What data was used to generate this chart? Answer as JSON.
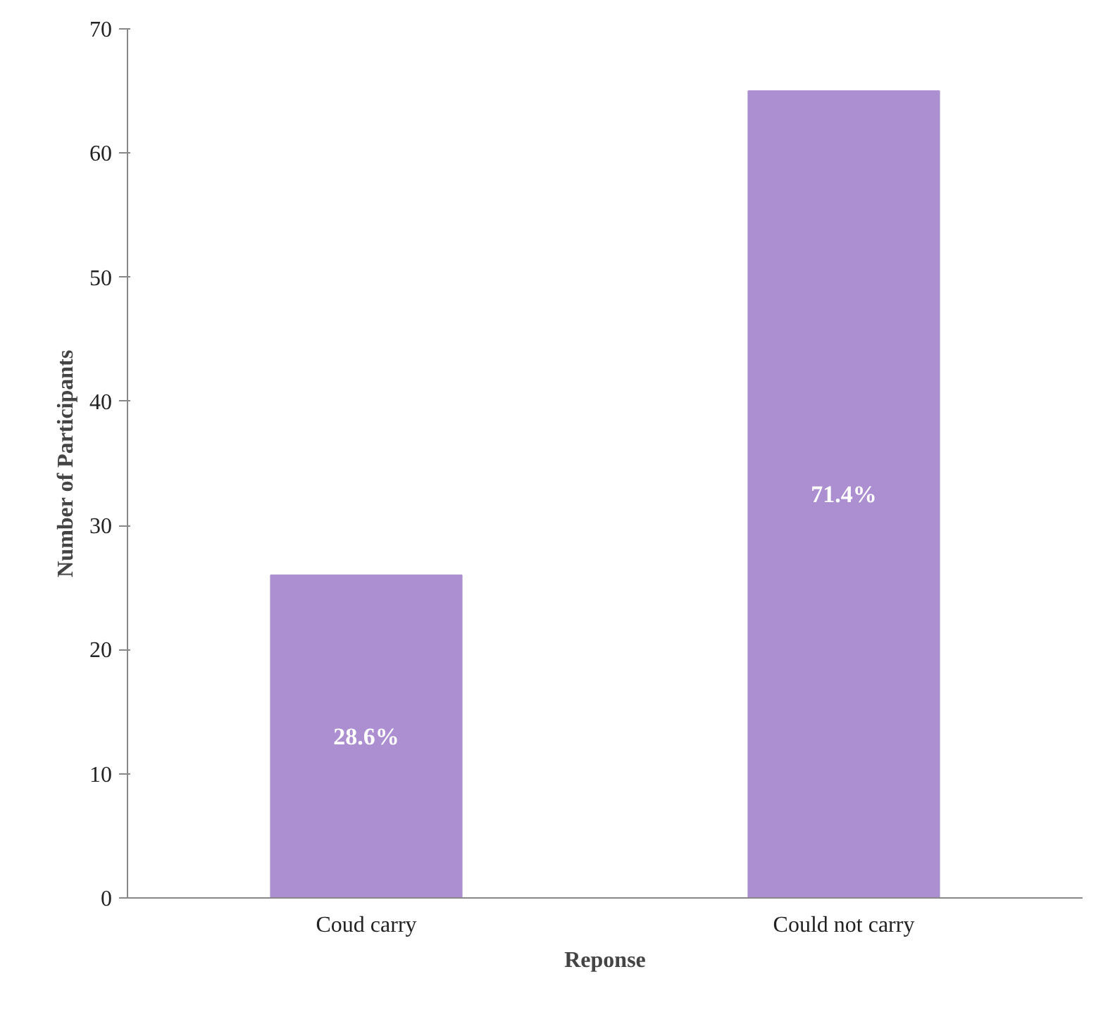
{
  "chart_data": {
    "type": "bar",
    "xlabel": "Reponse",
    "ylabel": "Number of Participants",
    "categories": [
      "Coud carry",
      "Could not carry"
    ],
    "values": [
      26,
      65
    ],
    "color": "#ab8fd0",
    "annotations": [
      "28.6%",
      "71.4%"
    ],
    "ylim": [
      0,
      70
    ],
    "yticks": [
      0,
      10,
      20,
      30,
      40,
      50,
      60,
      70
    ],
    "grid": false
  }
}
